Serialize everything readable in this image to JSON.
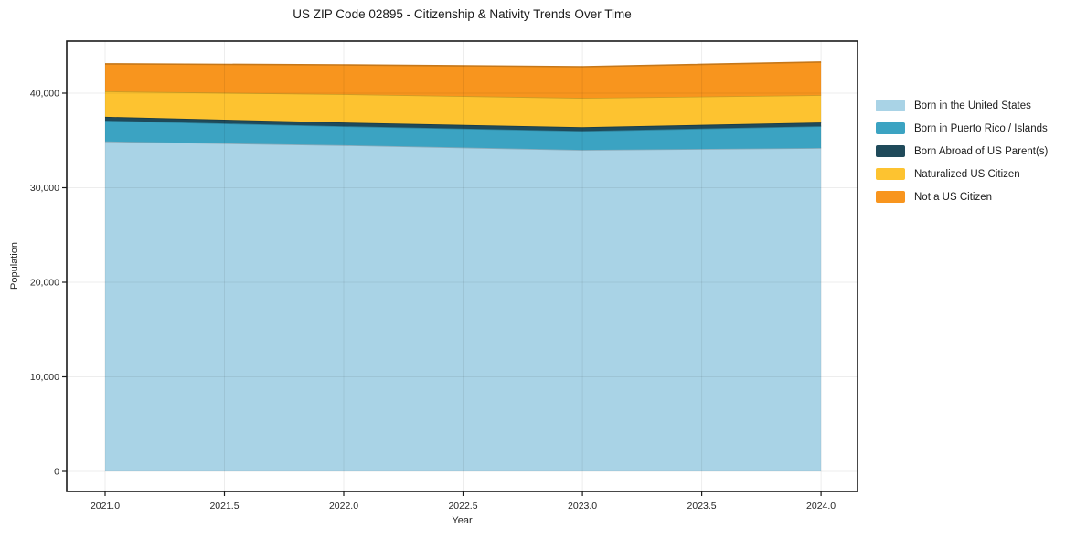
{
  "chart_data": {
    "type": "area",
    "stacked": true,
    "title": "US ZIP Code 02895 - Citizenship & Nativity Trends Over Time",
    "xlabel": "Year",
    "ylabel": "Population",
    "x": [
      2021,
      2022,
      2023,
      2024
    ],
    "series": [
      {
        "name": "Born in the United States",
        "color": "#A9D3E6",
        "values": [
          34900,
          34500,
          34000,
          34200
        ]
      },
      {
        "name": "Born in Puerto Rico / Islands",
        "color": "#3BA3C2",
        "values": [
          2200,
          2000,
          2000,
          2300
        ]
      },
      {
        "name": "Born Abroad of US Parent(s)",
        "color": "#1F4A5A",
        "values": [
          400,
          400,
          400,
          400
        ]
      },
      {
        "name": "Naturalized US Citizen",
        "color": "#FDC330",
        "values": [
          2700,
          3000,
          3100,
          2900
        ]
      },
      {
        "name": "Not a US Citizen",
        "color": "#F8951E",
        "values": [
          2900,
          3100,
          3300,
          3500
        ]
      }
    ],
    "x_ticks": [
      2021.0,
      2021.5,
      2022.0,
      2022.5,
      2023.0,
      2023.5,
      2024.0
    ],
    "x_tick_labels": [
      "2021.0",
      "2021.5",
      "2022.0",
      "2022.5",
      "2023.0",
      "2023.5",
      "2024.0"
    ],
    "y_ticks": [
      0,
      10000,
      20000,
      30000,
      40000
    ],
    "y_tick_labels": [
      "0",
      "10,000",
      "20,000",
      "30,000",
      "40,000"
    ],
    "xlim": [
      2020.839,
      2024.153
    ],
    "ylim": [
      -2130,
      45510
    ],
    "grid": true,
    "legend_position": "center-right-outside",
    "axis_color": "#1a1a1a",
    "tick_label_color": "#262626",
    "grid_color": "rgba(0,0,0,0.07)"
  }
}
